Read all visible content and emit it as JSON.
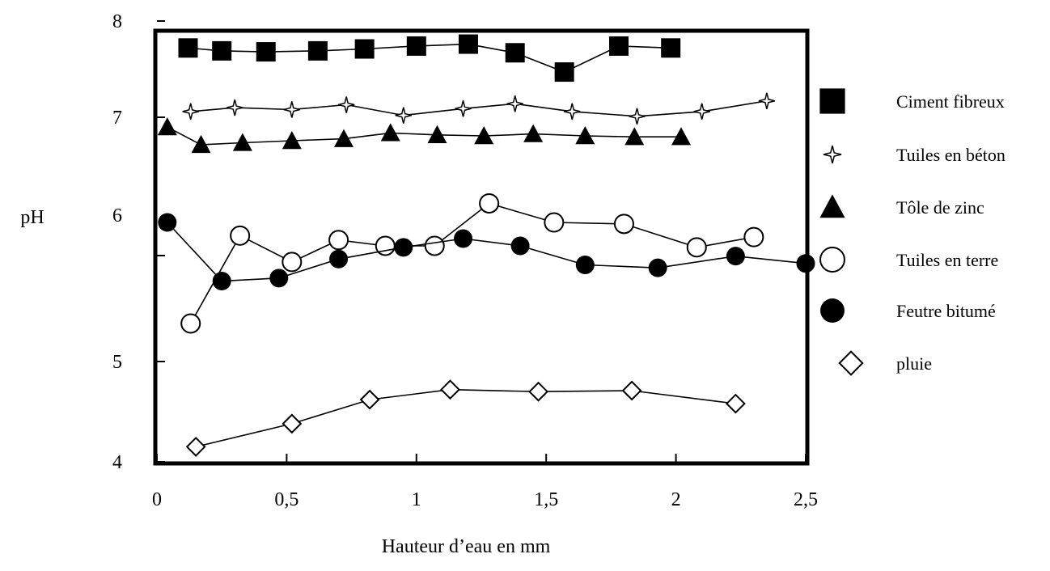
{
  "chart_data": {
    "type": "line",
    "title": "",
    "xlabel": "Hauteur d’eau en mm",
    "ylabel": "pH",
    "xlim": [
      0,
      2.5
    ],
    "ylim": [
      4,
      8
    ],
    "x_ticks": [
      "0",
      "0,5",
      "1",
      "1,5",
      "2",
      "2,5"
    ],
    "y_ticks": [
      "4",
      "5",
      "6",
      "7",
      "8"
    ],
    "grid": false,
    "legend_position": "right",
    "series": [
      {
        "name": "Ciment fibreux",
        "marker": "square-filled",
        "x": [
          0.12,
          0.25,
          0.42,
          0.62,
          0.8,
          1.0,
          1.2,
          1.38,
          1.57,
          1.78,
          1.98
        ],
        "y": [
          7.72,
          7.69,
          7.68,
          7.69,
          7.71,
          7.74,
          7.76,
          7.67,
          7.47,
          7.74,
          7.72
        ]
      },
      {
        "name": "Tuiles en béton",
        "marker": "star-open",
        "x": [
          0.13,
          0.3,
          0.52,
          0.73,
          0.95,
          1.18,
          1.38,
          1.6,
          1.85,
          2.1,
          2.35
        ],
        "y": [
          7.06,
          7.1,
          7.08,
          7.13,
          7.02,
          7.09,
          7.14,
          7.06,
          7.01,
          7.06,
          7.17
        ]
      },
      {
        "name": "Tôle de zinc",
        "marker": "triangle-filled",
        "x": [
          0.04,
          0.17,
          0.33,
          0.52,
          0.72,
          0.9,
          1.08,
          1.26,
          1.45,
          1.65,
          1.84,
          2.02
        ],
        "y": [
          6.9,
          6.72,
          6.74,
          6.76,
          6.78,
          6.84,
          6.82,
          6.81,
          6.83,
          6.81,
          6.8,
          6.8
        ]
      },
      {
        "name": "Tuiles en terre",
        "marker": "circle-open",
        "x": [
          0.13,
          0.32,
          0.52,
          0.7,
          0.88,
          1.07,
          1.28,
          1.53,
          1.8,
          2.08,
          2.3
        ],
        "y": [
          5.26,
          5.86,
          5.68,
          5.83,
          5.79,
          5.79,
          6.12,
          5.95,
          5.94,
          5.78,
          5.85
        ]
      },
      {
        "name": "Feutre bitumé",
        "marker": "circle-filled",
        "x": [
          0.04,
          0.25,
          0.47,
          0.7,
          0.95,
          1.18,
          1.4,
          1.65,
          1.93,
          2.23,
          2.5
        ],
        "y": [
          5.95,
          5.55,
          5.57,
          5.7,
          5.78,
          5.84,
          5.79,
          5.66,
          5.64,
          5.72,
          5.67
        ]
      },
      {
        "name": "pluie",
        "marker": "diamond-open",
        "x": [
          0.15,
          0.52,
          0.82,
          1.13,
          1.47,
          1.83,
          2.23
        ],
        "y": [
          4.15,
          4.38,
          4.62,
          4.72,
          4.7,
          4.71,
          4.58
        ]
      }
    ]
  }
}
